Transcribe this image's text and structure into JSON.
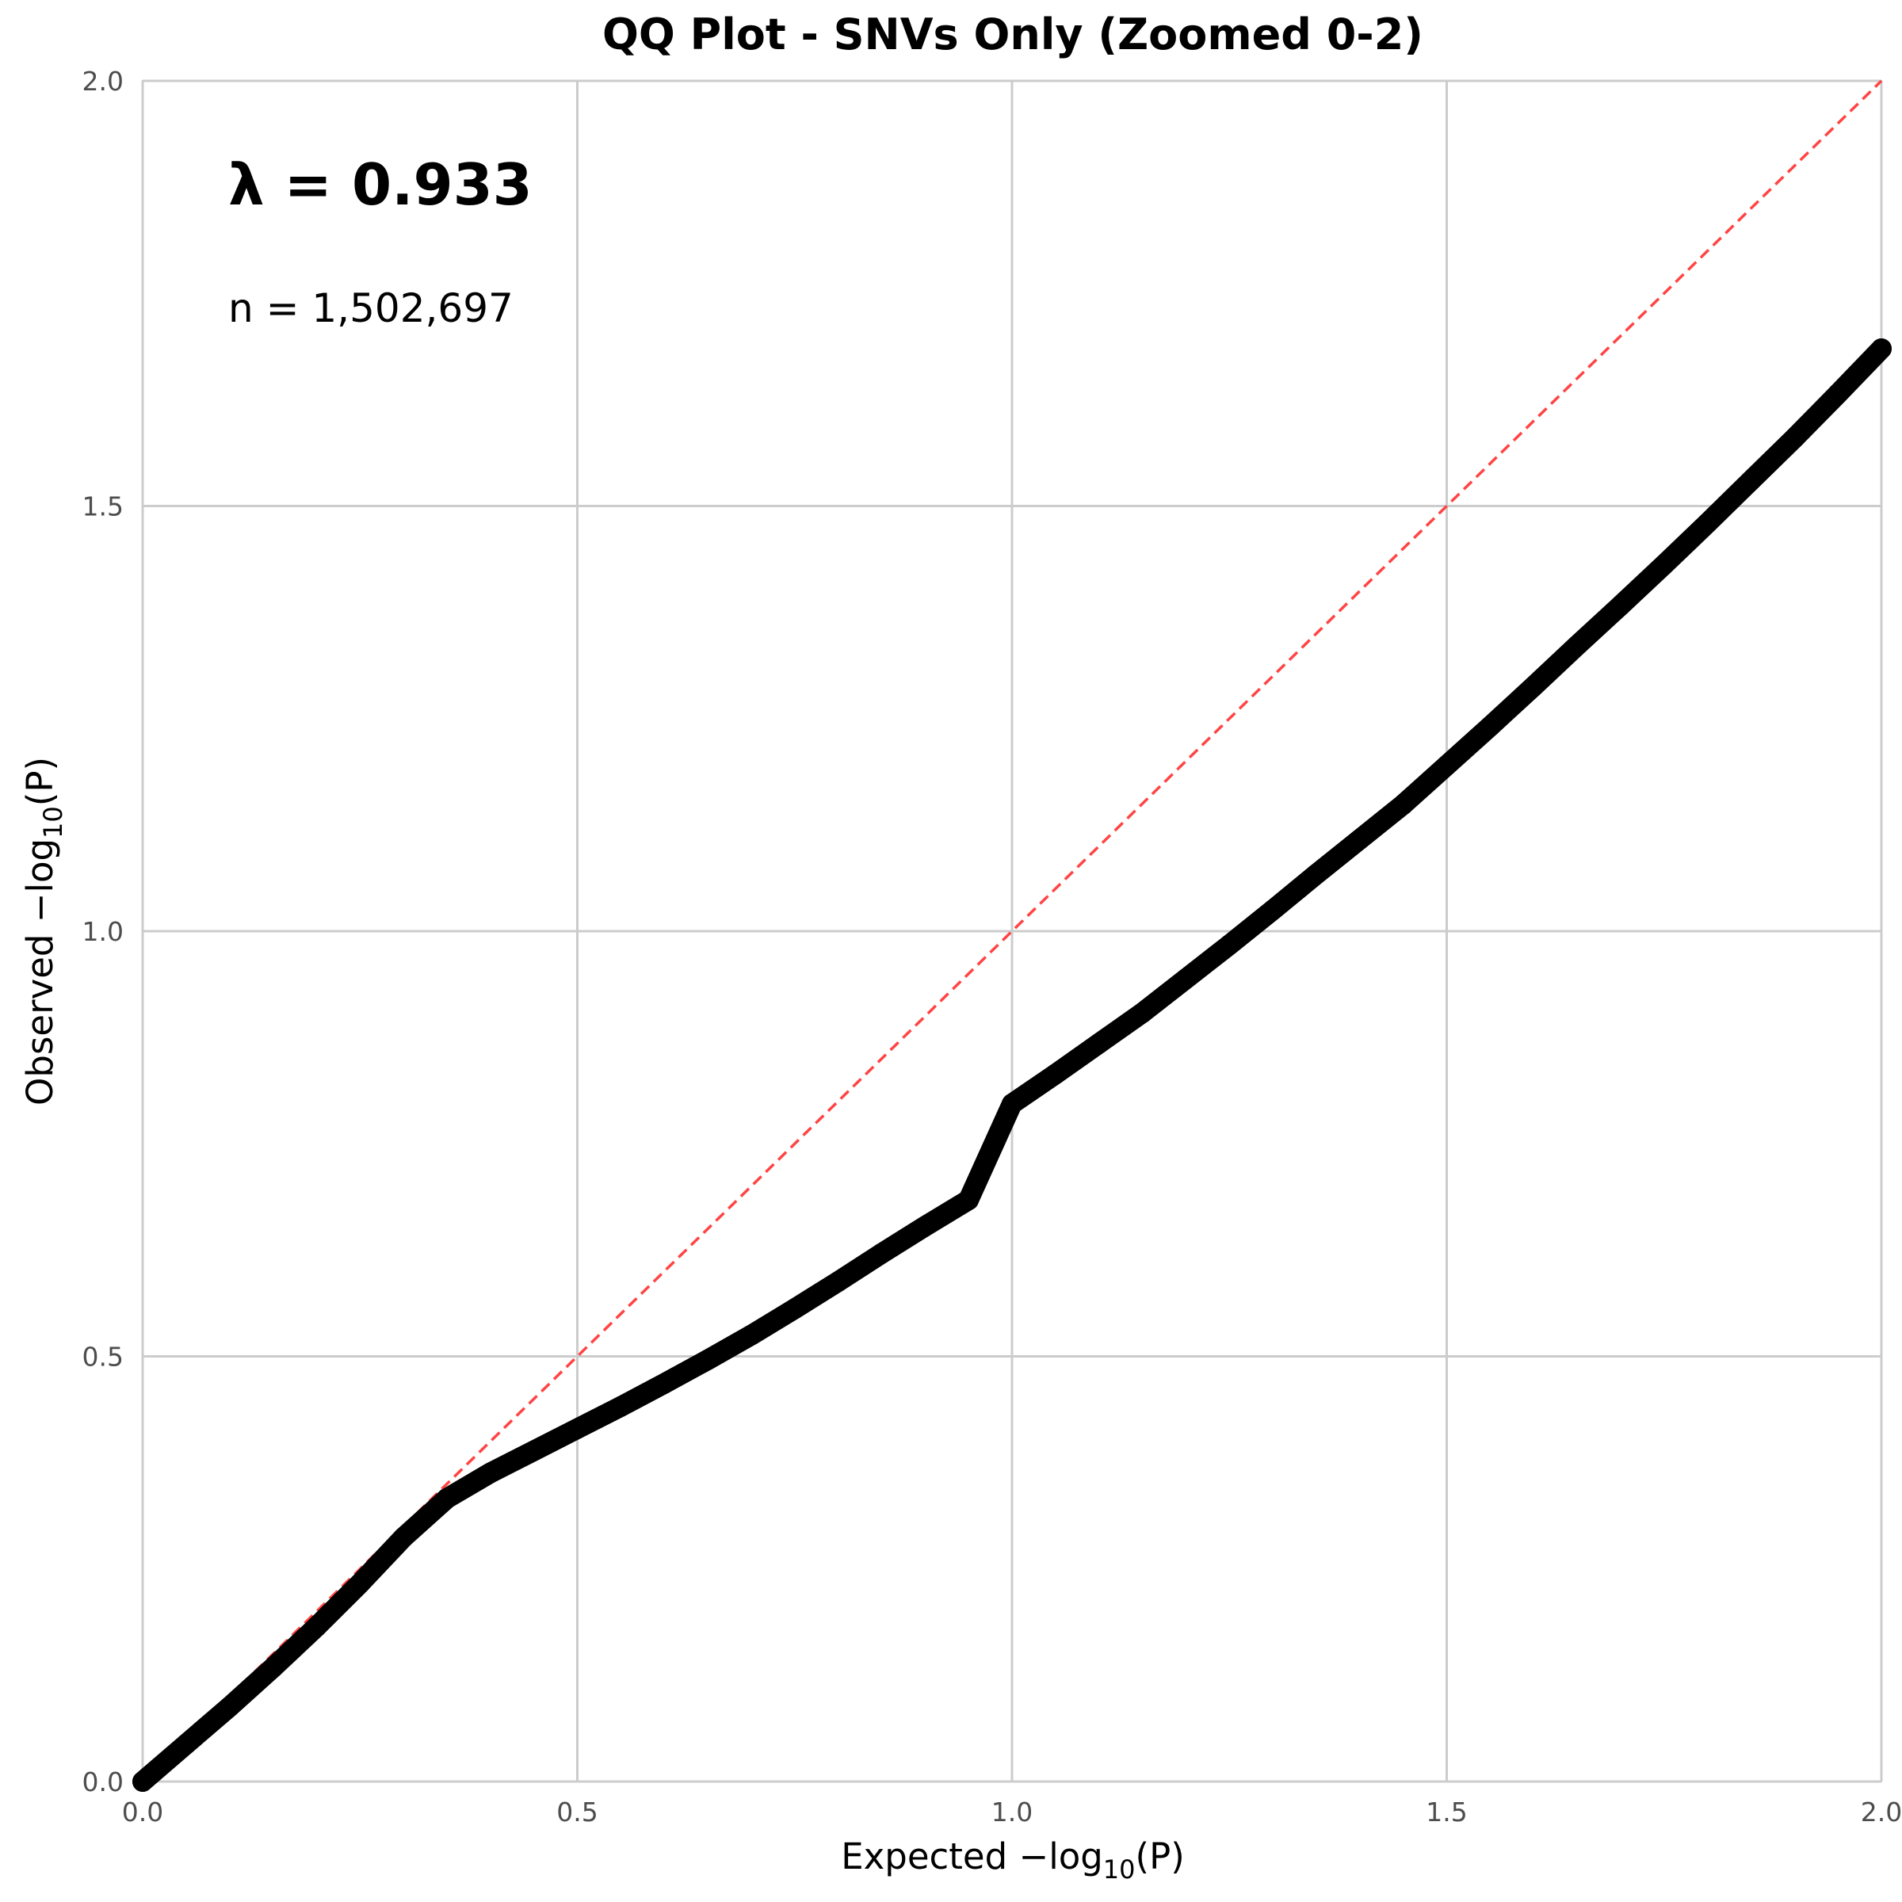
{
  "chart_data": {
    "type": "scatter",
    "title": "QQ Plot - SNVs Only (Zoomed 0-2)",
    "xlabel": {
      "prefix": "Expected −log",
      "sub": "10",
      "suffix": "(P)"
    },
    "ylabel": {
      "prefix": "Observed −log",
      "sub": "10",
      "suffix": "(P)"
    },
    "xlim": [
      0,
      2
    ],
    "ylim": [
      0,
      2
    ],
    "xticks": [
      "0.0",
      "0.5",
      "1.0",
      "1.5",
      "2.0"
    ],
    "yticks": [
      "0.0",
      "0.5",
      "1.0",
      "1.5",
      "2.0"
    ],
    "grid": true,
    "annotations": {
      "lambda": "λ = 0.933",
      "n": "n = 1,502,697"
    },
    "reference_line": {
      "x": [
        0,
        2
      ],
      "y": [
        0,
        2
      ],
      "color": "#ff4444",
      "style": "dashed"
    },
    "series": [
      {
        "color": "#000000",
        "points": [
          [
            0.0,
            0.0
          ],
          [
            0.05,
            0.044
          ],
          [
            0.1,
            0.088
          ],
          [
            0.15,
            0.134
          ],
          [
            0.2,
            0.182
          ],
          [
            0.25,
            0.233
          ],
          [
            0.3,
            0.287
          ],
          [
            0.35,
            0.333
          ],
          [
            0.4,
            0.363
          ],
          [
            0.45,
            0.389
          ],
          [
            0.5,
            0.415
          ],
          [
            0.55,
            0.441
          ],
          [
            0.6,
            0.468
          ],
          [
            0.65,
            0.496
          ],
          [
            0.7,
            0.525
          ],
          [
            0.75,
            0.556
          ],
          [
            0.8,
            0.588
          ],
          [
            0.85,
            0.621
          ],
          [
            0.9,
            0.653
          ],
          [
            0.95,
            0.684
          ],
          [
            1.0,
            0.797
          ],
          [
            1.05,
            0.832
          ],
          [
            1.1,
            0.868
          ],
          [
            1.15,
            0.904
          ],
          [
            1.2,
            0.944
          ],
          [
            1.25,
            0.984
          ],
          [
            1.3,
            1.025
          ],
          [
            1.35,
            1.067
          ],
          [
            1.4,
            1.108
          ],
          [
            1.45,
            1.149
          ],
          [
            1.5,
            1.195
          ],
          [
            1.55,
            1.241
          ],
          [
            1.6,
            1.288
          ],
          [
            1.65,
            1.336
          ],
          [
            1.7,
            1.383
          ],
          [
            1.75,
            1.431
          ],
          [
            1.8,
            1.48
          ],
          [
            1.85,
            1.53
          ],
          [
            1.9,
            1.58
          ],
          [
            1.95,
            1.632
          ],
          [
            2.0,
            1.685
          ]
        ]
      }
    ]
  },
  "colors": {
    "points": "#000000",
    "reference": "#ff4444",
    "grid": "#cccccc",
    "tick_text": "#4d4d4d"
  }
}
